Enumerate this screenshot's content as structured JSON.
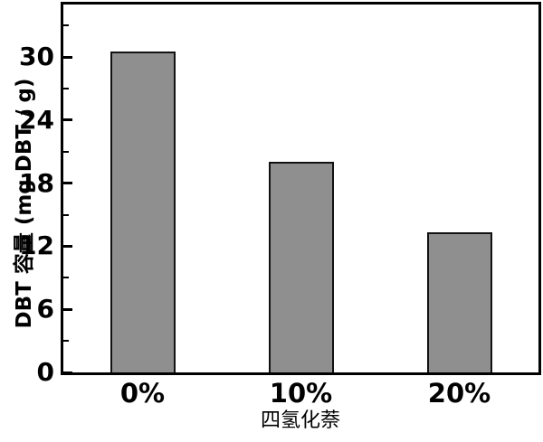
{
  "chart_data": {
    "type": "bar",
    "title": "",
    "categories": [
      "0%",
      "10%",
      "20%"
    ],
    "values": [
      30.5,
      20.0,
      13.3
    ],
    "xlabel": "四氢化萘",
    "ylabel": "DBT 容量 (mg DBT / g)",
    "ylim": [
      0,
      35
    ],
    "yticks_major": [
      0,
      6,
      12,
      18,
      24,
      30
    ],
    "yticks_minor": [
      3,
      9,
      15,
      21,
      27,
      33
    ],
    "grid": false,
    "legend_position": "none",
    "bar_color": "#8f8f8f",
    "bar_border_color": "#121212",
    "axis_color": "#000000",
    "background_color": "#ffffff",
    "tick_direction": "in"
  }
}
